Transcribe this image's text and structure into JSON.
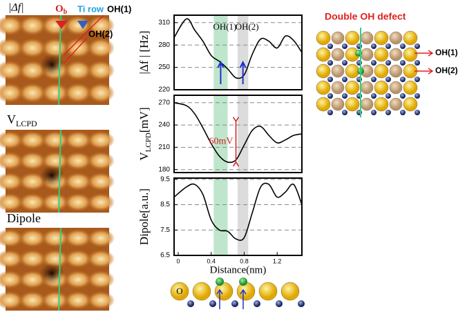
{
  "figure_labels": {
    "df": "|Δf|",
    "ob": "O",
    "ob_sub": "b",
    "ti_row": "Ti row",
    "oh1": "OH(1)",
    "oh2": "OH(2)",
    "vlcpd": "V",
    "vlcpd_sub": "LCPD",
    "dipole": "Dipole"
  },
  "model": {
    "title": "Double OH defect",
    "oh1": "OH(1)",
    "oh2": "OH(2)",
    "atom": "O"
  },
  "chart_data": [
    {
      "type": "line",
      "y_label": "|Δf | [Hz]",
      "annotations": [
        "OH(1)",
        "OH(2)"
      ],
      "x": [
        -0.05,
        0.1,
        0.2,
        0.3,
        0.4,
        0.5,
        0.6,
        0.7,
        0.8,
        0.9,
        1.0,
        1.1,
        1.2,
        1.3,
        1.4,
        1.5
      ],
      "series": [
        {
          "color": "#000000",
          "values": [
            290,
            315,
            300,
            285,
            266,
            258,
            248,
            236,
            240,
            268,
            288,
            285,
            276,
            292,
            286,
            270
          ]
        }
      ],
      "xlim": [
        -0.05,
        1.5
      ],
      "ylim": [
        220,
        320
      ],
      "yticks": [
        220,
        250,
        280,
        310
      ],
      "grid": true,
      "bands": [
        {
          "range": [
            0.43,
            0.6
          ],
          "color": "#bfe6cc"
        },
        {
          "range": [
            0.72,
            0.85
          ],
          "color": "#dcdcdc"
        }
      ]
    },
    {
      "type": "line",
      "y_label": "V",
      "y_label_sub": "LCPD",
      "y_label_unit": "[mV]",
      "annotation": "60mV",
      "annotation_range": [
        190,
        245
      ],
      "x": [
        -0.05,
        0.1,
        0.2,
        0.3,
        0.4,
        0.5,
        0.6,
        0.7,
        0.8,
        0.9,
        1.0,
        1.1,
        1.2,
        1.3,
        1.4,
        1.5
      ],
      "series": [
        {
          "color": "#000000",
          "values": [
            270,
            266,
            255,
            236,
            215,
            198,
            190,
            193,
            213,
            233,
            238,
            226,
            216,
            220,
            226,
            228
          ]
        }
      ],
      "xlim": [
        -0.05,
        1.5
      ],
      "ylim": [
        176,
        280
      ],
      "yticks": [
        180,
        210,
        240,
        270
      ],
      "grid": true,
      "bands": [
        {
          "range": [
            0.43,
            0.6
          ],
          "color": "#bfe6cc"
        },
        {
          "range": [
            0.72,
            0.85
          ],
          "color": "#dcdcdc"
        }
      ]
    },
    {
      "type": "line",
      "y_label": "Dipole[a.u.]",
      "x_label": "Distance(nm)",
      "x": [
        -0.05,
        0.1,
        0.2,
        0.3,
        0.4,
        0.5,
        0.6,
        0.7,
        0.8,
        0.9,
        1.0,
        1.1,
        1.2,
        1.3,
        1.4,
        1.5
      ],
      "series": [
        {
          "color": "#000000",
          "values": [
            8.8,
            9.2,
            9.3,
            8.9,
            7.9,
            7.5,
            7.45,
            7.15,
            7.2,
            8.2,
            9.2,
            9.3,
            8.8,
            9.0,
            9.3,
            8.5
          ]
        }
      ],
      "xlim": [
        -0.05,
        1.5
      ],
      "xticks": [
        0,
        0.4,
        0.8,
        1.2
      ],
      "ylim": [
        6.5,
        9.55
      ],
      "yticks": [
        6.5,
        7.5,
        8.5,
        9.5
      ],
      "grid": true,
      "bands": [
        {
          "range": [
            0.43,
            0.6
          ],
          "color": "#bfe6cc"
        },
        {
          "range": [
            0.72,
            0.85
          ],
          "color": "#dcdcdc"
        }
      ]
    }
  ]
}
